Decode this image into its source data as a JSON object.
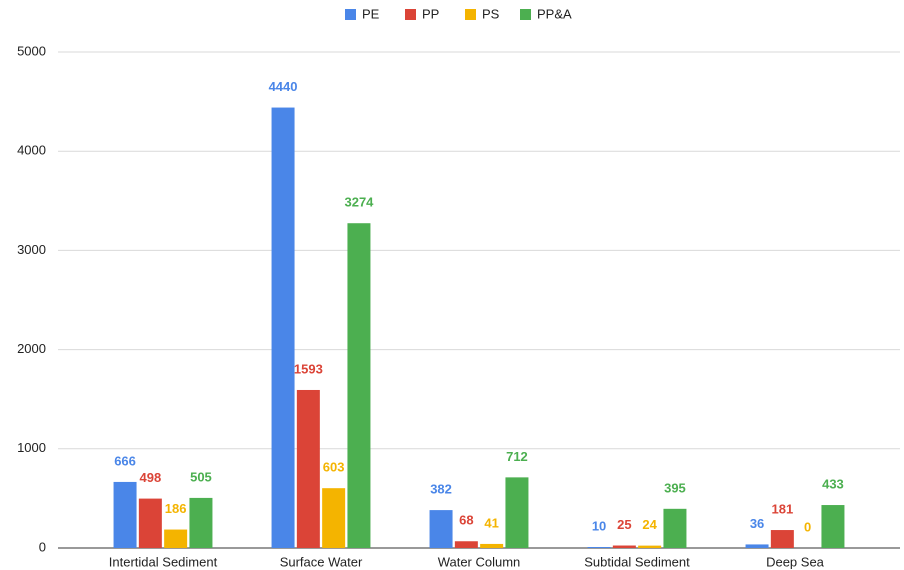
{
  "chart_data": {
    "type": "bar",
    "categories": [
      "Intertidal Sediment",
      "Surface Water",
      "Water Column",
      "Subtidal Sediment",
      "Deep Sea"
    ],
    "series": [
      {
        "name": "PE",
        "color": "#4a86e8",
        "values": [
          666,
          4440,
          382,
          10,
          36
        ]
      },
      {
        "name": "PP",
        "color": "#db4437",
        "values": [
          498,
          1593,
          68,
          25,
          181
        ]
      },
      {
        "name": "PS",
        "color": "#f4b400",
        "values": [
          186,
          603,
          41,
          24,
          0
        ]
      },
      {
        "name": "PP&A",
        "color": "#4caf50",
        "values": [
          505,
          3274,
          712,
          395,
          433
        ]
      }
    ],
    "ylim": [
      0,
      5000
    ],
    "yticks": [
      0,
      1000,
      2000,
      3000,
      4000,
      5000
    ],
    "grid": true,
    "legend": "top"
  }
}
